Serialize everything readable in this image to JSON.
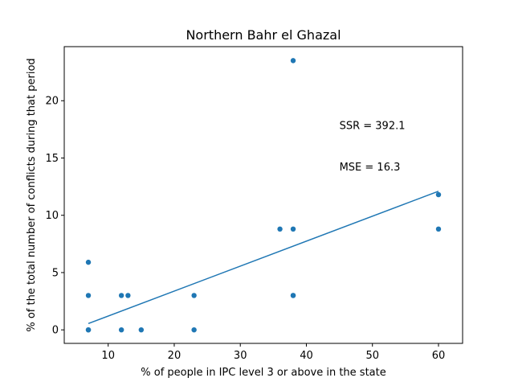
{
  "chart_data": {
    "type": "scatter",
    "title": "Northern Bahr el Ghazal",
    "xlabel": "% of people in IPC level 3 or above in the state",
    "ylabel": "% of the total number of conflicts during that period",
    "xlim": [
      3.35,
      63.65
    ],
    "ylim": [
      -1.18,
      24.72
    ],
    "xticks": [
      10,
      20,
      30,
      40,
      50,
      60
    ],
    "yticks": [
      0,
      5,
      10,
      15,
      20
    ],
    "grid": false,
    "colors": {
      "points": "#1f77b4",
      "fit_line": "#1f77b4"
    },
    "points": [
      {
        "x": 7,
        "y": 0
      },
      {
        "x": 7,
        "y": 0
      },
      {
        "x": 7,
        "y": 3
      },
      {
        "x": 7,
        "y": 5.9
      },
      {
        "x": 12,
        "y": 0
      },
      {
        "x": 12,
        "y": 3
      },
      {
        "x": 13,
        "y": 3
      },
      {
        "x": 15,
        "y": 0
      },
      {
        "x": 23,
        "y": 0
      },
      {
        "x": 23,
        "y": 3
      },
      {
        "x": 36,
        "y": 8.8
      },
      {
        "x": 38,
        "y": 23.5
      },
      {
        "x": 38,
        "y": 8.8
      },
      {
        "x": 38,
        "y": 3
      },
      {
        "x": 38,
        "y": 3
      },
      {
        "x": 60,
        "y": 11.8
      },
      {
        "x": 60,
        "y": 8.8
      }
    ],
    "fit_line": {
      "x": [
        7,
        60
      ],
      "y": [
        0.55,
        12.1
      ]
    },
    "annotations": [
      {
        "text": "SSR = 392.1",
        "x": 45,
        "y": 17.8
      },
      {
        "text": "MSE = 16.3",
        "x": 45,
        "y": 14.2
      }
    ]
  }
}
